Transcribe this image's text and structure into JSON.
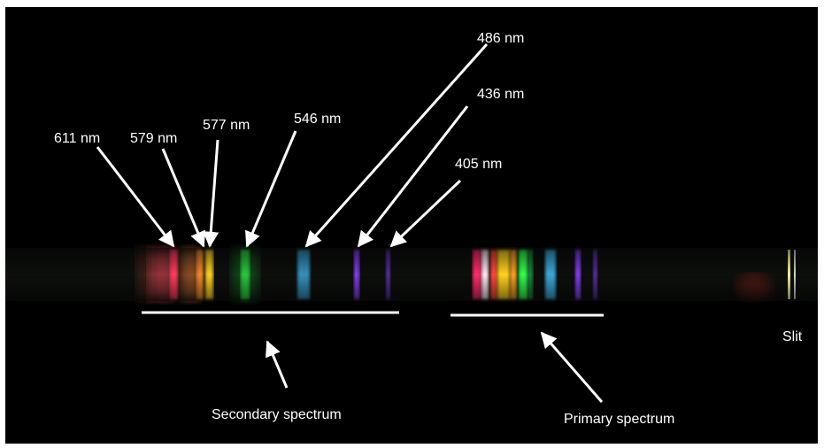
{
  "line_labels": [
    {
      "id": "611",
      "text": "611 nm"
    },
    {
      "id": "579",
      "text": "579 nm"
    },
    {
      "id": "577",
      "text": "577 nm"
    },
    {
      "id": "546",
      "text": "546 nm"
    },
    {
      "id": "486",
      "text": "486 nm"
    },
    {
      "id": "436",
      "text": "436 nm"
    },
    {
      "id": "405",
      "text": "405 nm"
    }
  ],
  "secondary_label": "Secondary spectrum",
  "primary_label": "Primary spectrum",
  "slit_label": "Slit",
  "colors": {
    "background": "#000000",
    "annotation": "#ffffff",
    "red": "#ff3b5c",
    "orange": "#f08a2a",
    "yellow": "#ffd21e",
    "green": "#2dff4a",
    "cyan": "#3aa6d8",
    "violet": "#8a3cff"
  }
}
